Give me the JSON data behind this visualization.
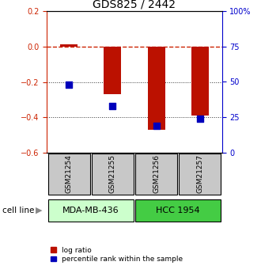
{
  "title": "GDS825 / 2442",
  "samples": [
    "GSM21254",
    "GSM21255",
    "GSM21256",
    "GSM21257"
  ],
  "log_ratio": [
    0.01,
    -0.27,
    -0.47,
    -0.39
  ],
  "percentile_rank_pct": [
    48,
    33,
    19,
    24
  ],
  "ylim_left": [
    -0.6,
    0.2
  ],
  "ylim_right": [
    0,
    100
  ],
  "yticks_left": [
    -0.6,
    -0.4,
    -0.2,
    0.0,
    0.2
  ],
  "yticks_right": [
    0,
    25,
    50,
    75,
    100
  ],
  "ytick_labels_right": [
    "0",
    "25",
    "50",
    "75",
    "100%"
  ],
  "cell_lines": [
    {
      "label": "MDA-MB-436",
      "samples": [
        0,
        1
      ],
      "color": "#ccffcc"
    },
    {
      "label": "HCC 1954",
      "samples": [
        2,
        3
      ],
      "color": "#44cc44"
    }
  ],
  "cell_line_label": "cell line",
  "bar_color": "#bb1100",
  "dot_color": "#0000bb",
  "bar_width": 0.4,
  "dot_size": 40,
  "ref_line_color": "#cc2200",
  "grid_color": "#333333",
  "bg_color": "#ffffff",
  "sample_box_color": "#c8c8c8",
  "legend_red_label": "log ratio",
  "legend_blue_label": "percentile rank within the sample",
  "left_label_color": "#cc2200",
  "right_label_color": "#0000cc",
  "tick_fontsize": 7,
  "title_fontsize": 10
}
